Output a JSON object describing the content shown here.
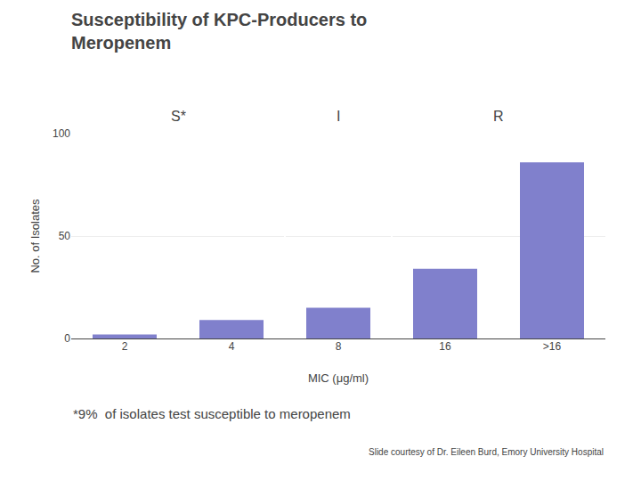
{
  "chart_data": {
    "type": "bar",
    "title": "Susceptibility of KPC-Producers to\nMeropenem",
    "categories": [
      "2",
      "4",
      "8",
      "16",
      ">16"
    ],
    "values": [
      2,
      9,
      15,
      34,
      86
    ],
    "color": "#8080cc",
    "xlabel": "MIC (μg/ml)",
    "ylabel": "No. of Isolates",
    "ylim": [
      0,
      100
    ],
    "yticks": [
      0,
      50,
      100
    ],
    "grid": true,
    "annotations": [
      "S*",
      "I",
      "R",
      "*9%  of isolates test susceptible to meropenem",
      "Slide courtesy of Dr. Eileen Burd, Emory University Hospital"
    ]
  }
}
